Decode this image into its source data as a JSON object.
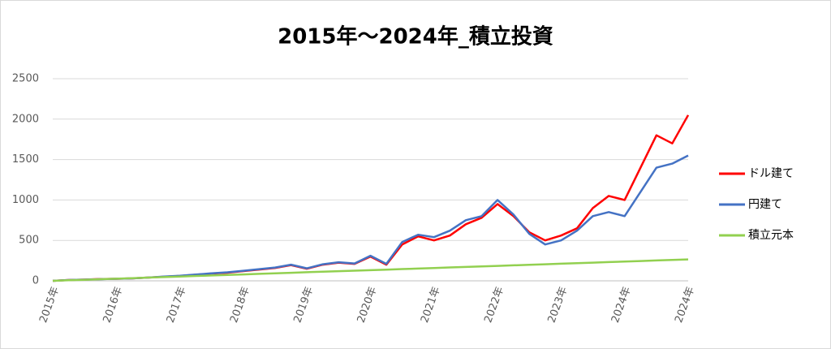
{
  "chart_data": {
    "type": "line",
    "title": "2015年～2024年_積立投資",
    "categories": [
      "2015年",
      null,
      null,
      null,
      "2016年",
      null,
      null,
      null,
      "2017年",
      null,
      null,
      null,
      "2018年",
      null,
      null,
      null,
      "2019年",
      null,
      null,
      null,
      "2020年",
      null,
      null,
      null,
      "2021年",
      null,
      null,
      null,
      "2022年",
      null,
      null,
      null,
      "2023年",
      null,
      null,
      null,
      "2024年",
      null,
      null,
      null,
      "2024年"
    ],
    "series": [
      {
        "name": "ドル建て",
        "color": "#ff0000",
        "values": [
          0,
          10,
          15,
          22,
          25,
          30,
          40,
          50,
          60,
          75,
          90,
          100,
          120,
          140,
          160,
          195,
          150,
          200,
          225,
          210,
          300,
          200,
          450,
          550,
          500,
          560,
          700,
          780,
          950,
          800,
          600,
          500,
          560,
          650,
          900,
          1050,
          1000,
          1400,
          1800,
          1700,
          2050
        ]
      },
      {
        "name": "円建て",
        "color": "#4472c4",
        "values": [
          0,
          10,
          15,
          20,
          25,
          30,
          40,
          52,
          62,
          78,
          92,
          105,
          125,
          145,
          165,
          200,
          155,
          205,
          230,
          215,
          310,
          210,
          480,
          570,
          540,
          620,
          750,
          800,
          1000,
          820,
          580,
          450,
          500,
          620,
          800,
          850,
          800,
          1100,
          1400,
          1450,
          1550
        ]
      },
      {
        "name": "積立元本",
        "color": "#92d050",
        "values": [
          0,
          7,
          13,
          20,
          26,
          33,
          40,
          46,
          53,
          60,
          66,
          73,
          79,
          86,
          93,
          99,
          106,
          113,
          119,
          126,
          132,
          139,
          146,
          152,
          159,
          166,
          172,
          179,
          185,
          192,
          199,
          205,
          212,
          219,
          225,
          232,
          238,
          245,
          252,
          258,
          265
        ]
      }
    ],
    "ylim": [
      0,
      2500
    ],
    "yticks": [
      0,
      500,
      1000,
      1500,
      2000,
      2500
    ],
    "grid": true,
    "legend": "right"
  }
}
